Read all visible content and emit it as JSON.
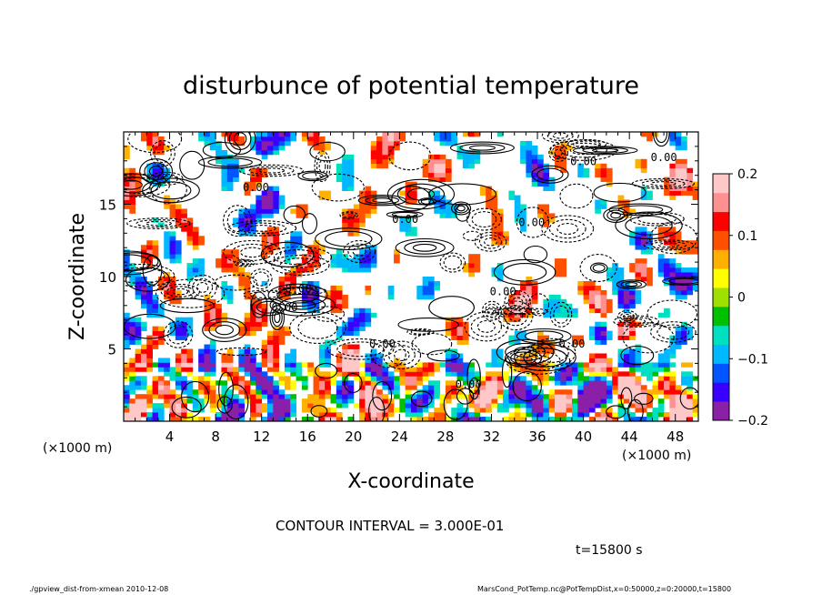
{
  "chart_data": {
    "type": "heatmap",
    "title": "disturbunce of potential temperature",
    "xlabel": "X-coordinate",
    "ylabel": "Z-coordinate",
    "x_unit": "(×1000 m)",
    "y_unit": "(×1000 m)",
    "xlim": [
      0,
      50
    ],
    "ylim": [
      0,
      20
    ],
    "x_ticks": [
      4,
      8,
      12,
      16,
      20,
      24,
      28,
      32,
      36,
      40,
      44,
      48
    ],
    "y_ticks": [
      5,
      10,
      15
    ],
    "colorbar": {
      "min": -0.2,
      "max": 0.2,
      "ticks": [
        {
          "value": 0.2,
          "label": "0.2"
        },
        {
          "value": 0.1,
          "label": "0.1"
        },
        {
          "value": 0,
          "label": "0"
        },
        {
          "value": -0.1,
          "label": "−0.1"
        },
        {
          "value": -0.2,
          "label": "−0.2"
        }
      ],
      "colors": [
        "#8a1fa8",
        "#3a00ff",
        "#0055ff",
        "#00b8ff",
        "#00e0c0",
        "#00c000",
        "#a0e000",
        "#ffff00",
        "#ffb000",
        "#ff5000",
        "#ff0000",
        "#ff9090",
        "#ffc8c8"
      ]
    },
    "contour_interval_text": "CONTOUR INTERVAL = 3.000E-01",
    "time_text": "t=15800 s",
    "footer_left": "./gpview_dist-from-xmean  2010-12-08",
    "footer_right": "MarsCond_PotTemp.nc@PotTempDist,x=0:50000,z=0:20000,t=15800",
    "contour_labels": [
      {
        "x": 11.5,
        "y": 15.9,
        "text": "0.00"
      },
      {
        "x": 24.5,
        "y": 13.7,
        "text": "0.00"
      },
      {
        "x": 35.5,
        "y": 13.5,
        "text": "0.00"
      },
      {
        "x": 15.2,
        "y": 8.9,
        "text": "0.00"
      },
      {
        "x": 33.0,
        "y": 8.7,
        "text": "0.00"
      },
      {
        "x": 14.0,
        "y": 7.6,
        "text": "0.00"
      },
      {
        "x": 22.5,
        "y": 5.1,
        "text": "0.00"
      },
      {
        "x": 39.0,
        "y": 5.1,
        "text": "0.00"
      },
      {
        "x": 30.0,
        "y": 2.3,
        "text": "0.00"
      },
      {
        "x": 40.0,
        "y": 17.7,
        "text": "0.00"
      },
      {
        "x": 47.0,
        "y": 18.0,
        "text": "0.00"
      }
    ]
  }
}
